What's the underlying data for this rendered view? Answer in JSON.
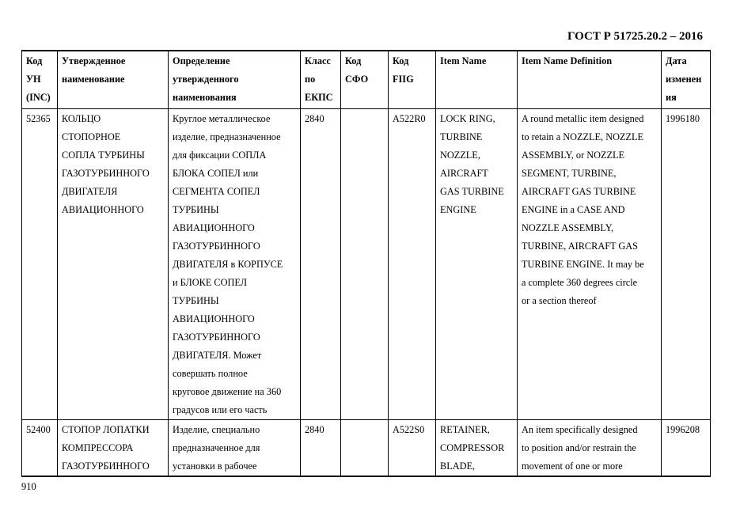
{
  "header": {
    "standard": "ГОСТ Р 51725.20.2 – 2016"
  },
  "table": {
    "columns": [
      "Код\nУН\n(INC)",
      "Утвержденное\nнаименование",
      "Определение\nутвержденного\nнаименования",
      "Класс\nпо\nЕКПС",
      "Код\nСФО",
      "Код\nFIIG",
      "Item Name",
      "Item Name Definition",
      "Дата\nизменен\nия"
    ],
    "rows": [
      [
        "52365",
        "КОЛЬЦО\nСТОПОРНОЕ\nСОПЛА ТУРБИНЫ\nГАЗОТУРБИННОГО\nДВИГАТЕЛЯ\nАВИАЦИОННОГО",
        "Круглое металлическое\nизделие, предназначенное\nдля фиксации СОПЛА\nБЛОКА СОПЕЛ или\nСЕГМЕНТА СОПЕЛ\nТУРБИНЫ\nАВИАЦИОННОГО\nГАЗОТУРБИННОГО\nДВИГАТЕЛЯ в КОРПУСЕ\nи БЛОКЕ СОПЕЛ\nТУРБИНЫ\nАВИАЦИОННОГО\nГАЗОТУРБИННОГО\nДВИГАТЕЛЯ. Может\nсовершать полное\nкруговое движение на 360\nградусов или его часть",
        "2840",
        "",
        "A522R0",
        "LOCK RING,\nTURBINE\nNOZZLE,\nAIRCRAFT\nGAS TURBINE\nENGINE",
        "A round metallic item designed\nto retain a NOZZLE, NOZZLE\nASSEMBLY, or NOZZLE\nSEGMENT, TURBINE,\nAIRCRAFT GAS TURBINE\nENGINE in a CASE AND\nNOZZLE ASSEMBLY,\nTURBINE, AIRCRAFT GAS\nTURBINE ENGINE. It may be\na complete 360 degrees circle\nor a section thereof",
        "1996180"
      ],
      [
        "52400",
        "СТОПОР ЛОПАТКИ\nКОМПРЕССОРА\nГАЗОТУРБИННОГО",
        "Изделие, специально\nпредназначенное для\nустановки в рабочее",
        "2840",
        "",
        "A522S0",
        "RETAINER,\nCOMPRESSOR\nBLADE,",
        "An item specifically designed\nto position and/or restrain the\nmovement of one or more",
        "1996208"
      ]
    ]
  },
  "footer": {
    "page_number": "910"
  }
}
